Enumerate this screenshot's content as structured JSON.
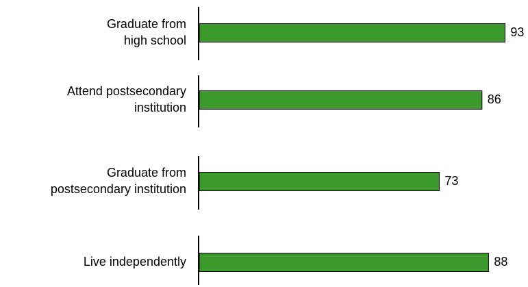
{
  "chart_data": {
    "type": "bar",
    "orientation": "horizontal",
    "categories": [
      [
        "Graduate from",
        "high school"
      ],
      [
        "Attend postsecondary",
        "institution"
      ],
      [
        "Graduate from",
        "postsecondary institution"
      ],
      [
        "Live independently"
      ]
    ],
    "values": [
      93,
      86,
      73,
      88
    ],
    "color": "#3c9a2c"
  }
}
